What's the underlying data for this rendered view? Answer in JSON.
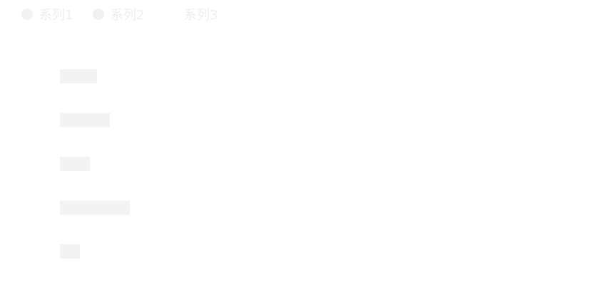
{
  "chart_data": {
    "type": "bar",
    "orientation": "horizontal",
    "legend_position": "top-left",
    "grid": false,
    "series": [
      {
        "name": "系列1",
        "color": "#f3f3f3",
        "values": [
          52,
          70,
          42,
          98,
          28
        ]
      },
      {
        "name": "系列2",
        "color": "#f1f1f1",
        "values": []
      },
      {
        "name": "系列3",
        "color": "#ffffff",
        "values": []
      }
    ],
    "xlim": [
      0,
      100
    ]
  }
}
